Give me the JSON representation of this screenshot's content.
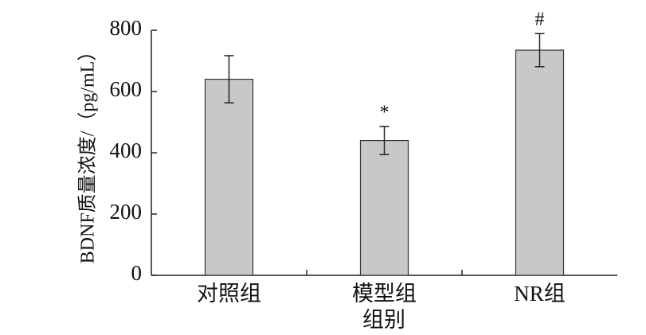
{
  "chart_data": {
    "type": "bar",
    "y_label": "BDNF质量浓度/（pg/mL）",
    "x_label": "组别",
    "categories": [
      "对照组",
      "模型组",
      "NR组"
    ],
    "values": [
      640,
      440,
      735
    ],
    "errors": [
      77,
      46,
      54
    ],
    "annotations": [
      null,
      "*",
      "#"
    ],
    "color": "#c8c8c8",
    "ylim": [
      0,
      800
    ],
    "yticks": [
      0,
      200,
      400,
      600,
      800
    ],
    "grid": false
  }
}
